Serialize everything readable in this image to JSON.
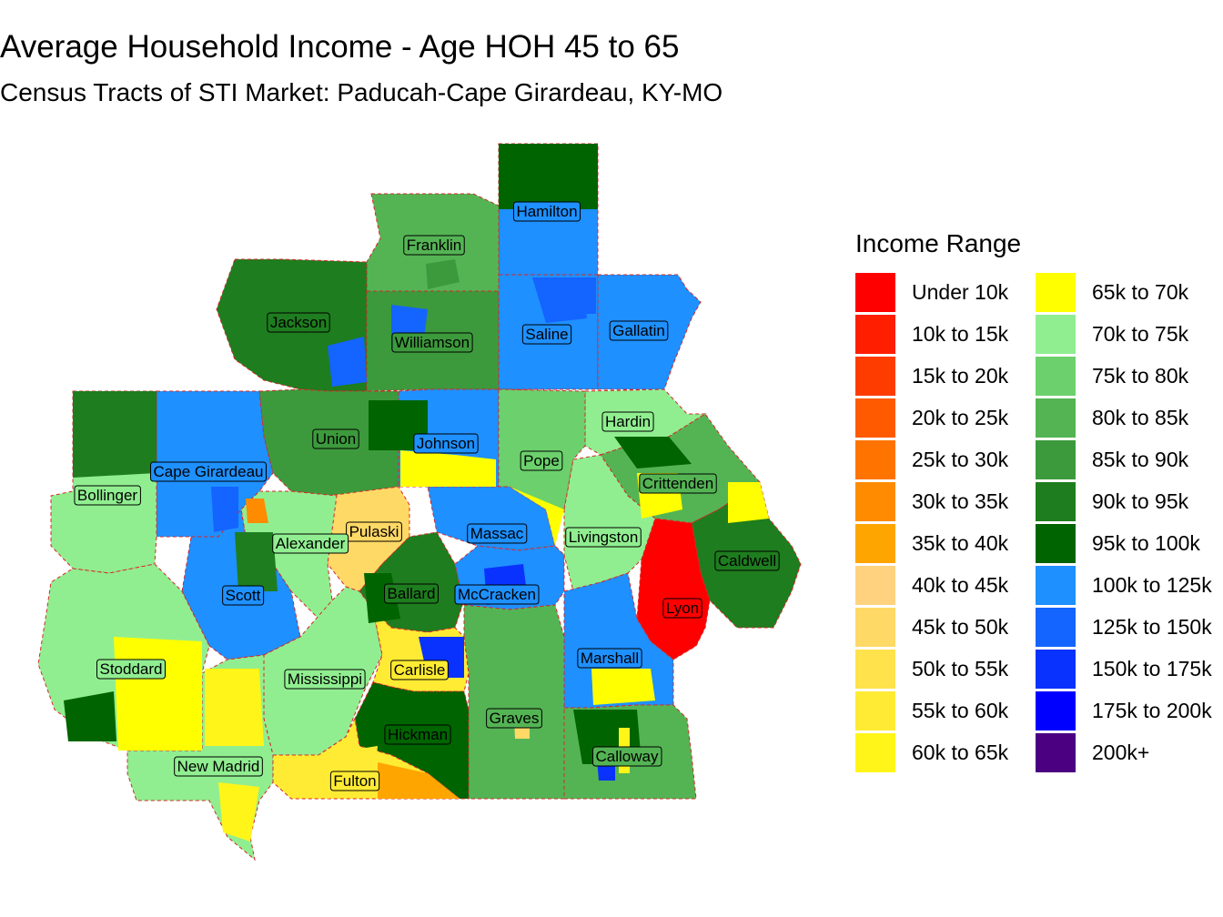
{
  "title": "Average Household Income - Age HOH 45 to 65",
  "subtitle": "Census Tracts of STI Market: Paducah-Cape Girardeau, KY-MO",
  "legend": {
    "title": "Income Range",
    "items": [
      {
        "label": "Under 10k",
        "color": "#FF0000"
      },
      {
        "label": "10k to 15k",
        "color": "#FF1E00"
      },
      {
        "label": "15k to 20k",
        "color": "#FF3C00"
      },
      {
        "label": "20k to 25k",
        "color": "#FF5A00"
      },
      {
        "label": "25k to 30k",
        "color": "#FF7400"
      },
      {
        "label": "30k to 35k",
        "color": "#FF8C00"
      },
      {
        "label": "35k to 40k",
        "color": "#FFA500"
      },
      {
        "label": "40k to 45k",
        "color": "#FFD27F"
      },
      {
        "label": "45k to 50k",
        "color": "#FFD966"
      },
      {
        "label": "50k to 55k",
        "color": "#FFE24C"
      },
      {
        "label": "55k to 60k",
        "color": "#FFEB33"
      },
      {
        "label": "60k to 65k",
        "color": "#FFF519"
      },
      {
        "label": "65k to 70k",
        "color": "#FFFF00"
      },
      {
        "label": "70k to 75k",
        "color": "#90EE90"
      },
      {
        "label": "75k to 80k",
        "color": "#6CD06C"
      },
      {
        "label": "80k to 85k",
        "color": "#54B454"
      },
      {
        "label": "85k to 90k",
        "color": "#3C9A3C"
      },
      {
        "label": "90k to 95k",
        "color": "#1E7D1E"
      },
      {
        "label": "95k to 100k",
        "color": "#006400"
      },
      {
        "label": "100k to 125k",
        "color": "#1E90FF"
      },
      {
        "label": "125k to 150k",
        "color": "#1464FF"
      },
      {
        "label": "150k to 175k",
        "color": "#0A32FF"
      },
      {
        "label": "175k to 200k",
        "color": "#0000FF"
      },
      {
        "label": "200k+",
        "color": "#4B0082"
      }
    ]
  },
  "counties": [
    {
      "name": "Hamilton",
      "color": "#1E90FF"
    },
    {
      "name": "Franklin",
      "color": "#54B454"
    },
    {
      "name": "Jackson",
      "color": "#1E7D1E"
    },
    {
      "name": "Williamson",
      "color": "#3C9A3C"
    },
    {
      "name": "Saline",
      "color": "#1E90FF"
    },
    {
      "name": "Gallatin",
      "color": "#1E90FF"
    },
    {
      "name": "Hardin",
      "color": "#90EE90"
    },
    {
      "name": "Union",
      "color": "#3C9A3C"
    },
    {
      "name": "Johnson",
      "color": "#1E90FF"
    },
    {
      "name": "Pope",
      "color": "#6CD06C"
    },
    {
      "name": "Cape Girardeau",
      "color": "#1E90FF"
    },
    {
      "name": "Crittenden",
      "color": "#54B454"
    },
    {
      "name": "Bollinger",
      "color": "#90EE90"
    },
    {
      "name": "Pulaski",
      "color": "#FFD966"
    },
    {
      "name": "Massac",
      "color": "#1E90FF"
    },
    {
      "name": "Livingston",
      "color": "#90EE90"
    },
    {
      "name": "Alexander",
      "color": "#90EE90"
    },
    {
      "name": "Caldwell",
      "color": "#1E7D1E"
    },
    {
      "name": "Scott",
      "color": "#1E90FF"
    },
    {
      "name": "Ballard",
      "color": "#1E7D1E"
    },
    {
      "name": "McCracken",
      "color": "#1E90FF"
    },
    {
      "name": "Lyon",
      "color": "#FF0000"
    },
    {
      "name": "Stoddard",
      "color": "#90EE90"
    },
    {
      "name": "Mississippi",
      "color": "#90EE90"
    },
    {
      "name": "Carlisle",
      "color": "#FFEB33"
    },
    {
      "name": "Marshall",
      "color": "#1E90FF"
    },
    {
      "name": "Graves",
      "color": "#54B454"
    },
    {
      "name": "Hickman",
      "color": "#006400"
    },
    {
      "name": "Calloway",
      "color": "#54B454"
    },
    {
      "name": "New Madrid",
      "color": "#90EE90"
    },
    {
      "name": "Fulton",
      "color": "#FFEB33"
    }
  ]
}
